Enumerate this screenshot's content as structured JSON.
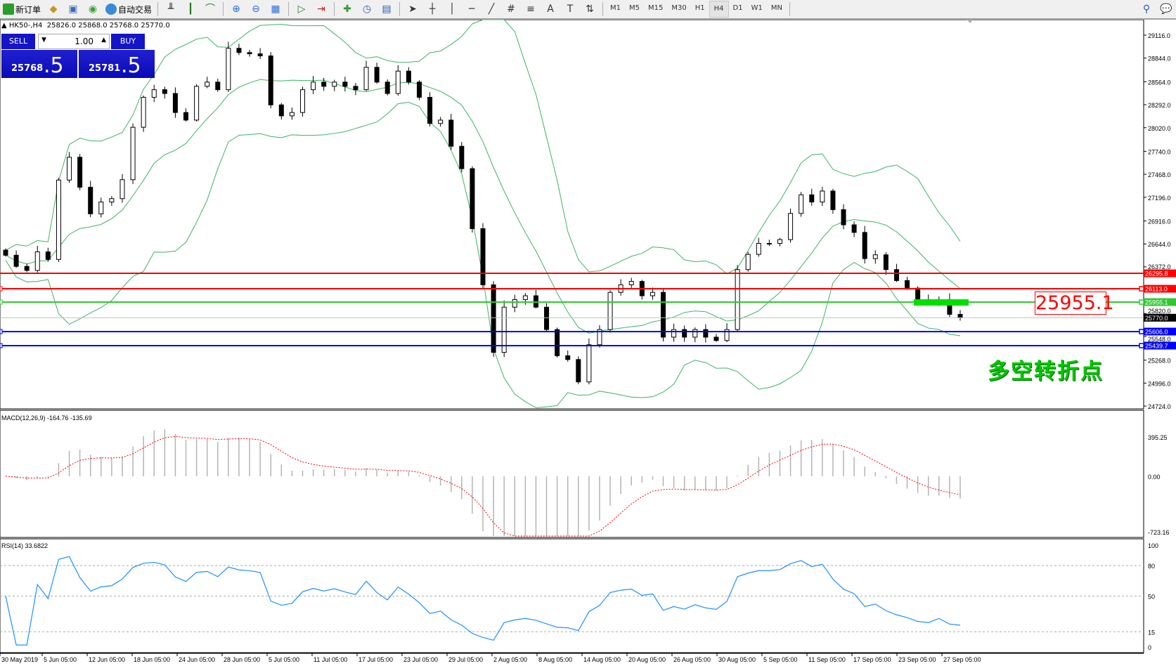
{
  "toolbar": {
    "new_order": "新订单",
    "auto_trading": "自动交易",
    "timeframes": [
      "M1",
      "M5",
      "M15",
      "M30",
      "H1",
      "H4",
      "D1",
      "W1",
      "MN"
    ],
    "active_timeframe": "H4"
  },
  "chart_header": {
    "symbol": "HK50-,H4",
    "ohlc": "25826.0 25868.0 25768.0 25770.0"
  },
  "trade_panel": {
    "sell": "SELL",
    "buy": "BUY",
    "lot": "1.00",
    "bid_main": "25768",
    "bid_frac": ".5",
    "ask_main": "25781",
    "ask_frac": ".5"
  },
  "price_axis": [
    "29116.0",
    "28844.0",
    "28564.0",
    "28292.0",
    "28020.0",
    "27740.0",
    "27468.0",
    "27196.0",
    "26916.0",
    "26644.0",
    "26372.0",
    "25820.0",
    "25548.0",
    "25268.0",
    "24996.0",
    "24724.0"
  ],
  "levels": [
    {
      "price": 26295.8,
      "label": "26295.8",
      "color": "#ff0000"
    },
    {
      "price": 26113.0,
      "label": "26113.0",
      "color": "#ff0000"
    },
    {
      "price": 25955.1,
      "label": "25955.1",
      "color": "#32c832"
    },
    {
      "price": 25606.0,
      "label": "25606.0",
      "color": "#0000ff"
    },
    {
      "price": 25439.7,
      "label": "25439.7",
      "color": "#0000ff"
    }
  ],
  "current_price": {
    "price": 25770.0,
    "label": "25770.0"
  },
  "annotations": {
    "price_box": "25955.1",
    "text": "多空转折点"
  },
  "macd": {
    "title": "MACD(12,26,9) -164.76 -135.69",
    "axis": [
      "395.25",
      "0.00",
      "-723.16"
    ]
  },
  "rsi": {
    "title": "RSI(14) 33.6822",
    "axis": [
      "100",
      "80",
      "50",
      "15",
      "0"
    ]
  },
  "time_axis": [
    "30 May 2019",
    "5 Jun 05:00",
    "12 Jun 05:00",
    "18 Jun 05:00",
    "24 Jun 05:00",
    "28 Jun 05:00",
    "5 Jul 05:00",
    "11 Jul 05:00",
    "17 Jul 05:00",
    "23 Jul 05:00",
    "29 Jul 05:00",
    "2 Aug 05:00",
    "8 Aug 05:00",
    "14 Aug 05:00",
    "20 Aug 05:00",
    "26 Aug 05:00",
    "30 Aug 05:00",
    "5 Sep 05:00",
    "11 Sep 05:00",
    "17 Sep 05:00",
    "23 Sep 05:00",
    "27 Sep 05:00"
  ],
  "colors": {
    "bands": "#3cb464",
    "macd_signal": "#ff0000",
    "rsi": "#1e90ff",
    "bull": "#ffffff",
    "bear": "#000000"
  },
  "chart_data": {
    "type": "candlestick",
    "ylim": [
      24724,
      29116
    ],
    "closes": [
      26510,
      26378,
      26330,
      26550,
      26460,
      27400,
      27670,
      27315,
      27000,
      27140,
      27180,
      27404,
      28025,
      28380,
      28470,
      28425,
      28200,
      28110,
      28510,
      28560,
      28470,
      28960,
      28910,
      28895,
      28870,
      28290,
      28160,
      28200,
      28470,
      28560,
      28510,
      28560,
      28510,
      28470,
      28735,
      28560,
      28425,
      28690,
      28560,
      28380,
      28070,
      28110,
      27800,
      27535,
      26825,
      26160,
      25360,
      25895,
      25985,
      26030,
      25895,
      25630,
      25320,
      25275,
      25010,
      25450,
      25630,
      26070,
      26160,
      26200,
      26030,
      26070,
      25540,
      25630,
      25540,
      25630,
      25540,
      25500,
      25630,
      26340,
      26520,
      26650,
      26650,
      26695,
      27005,
      27225,
      27140,
      27270,
      27050,
      26870,
      26780,
      26470,
      26515,
      26340,
      26210,
      26120,
      25985,
      25940,
      25985,
      25810,
      25770
    ]
  }
}
